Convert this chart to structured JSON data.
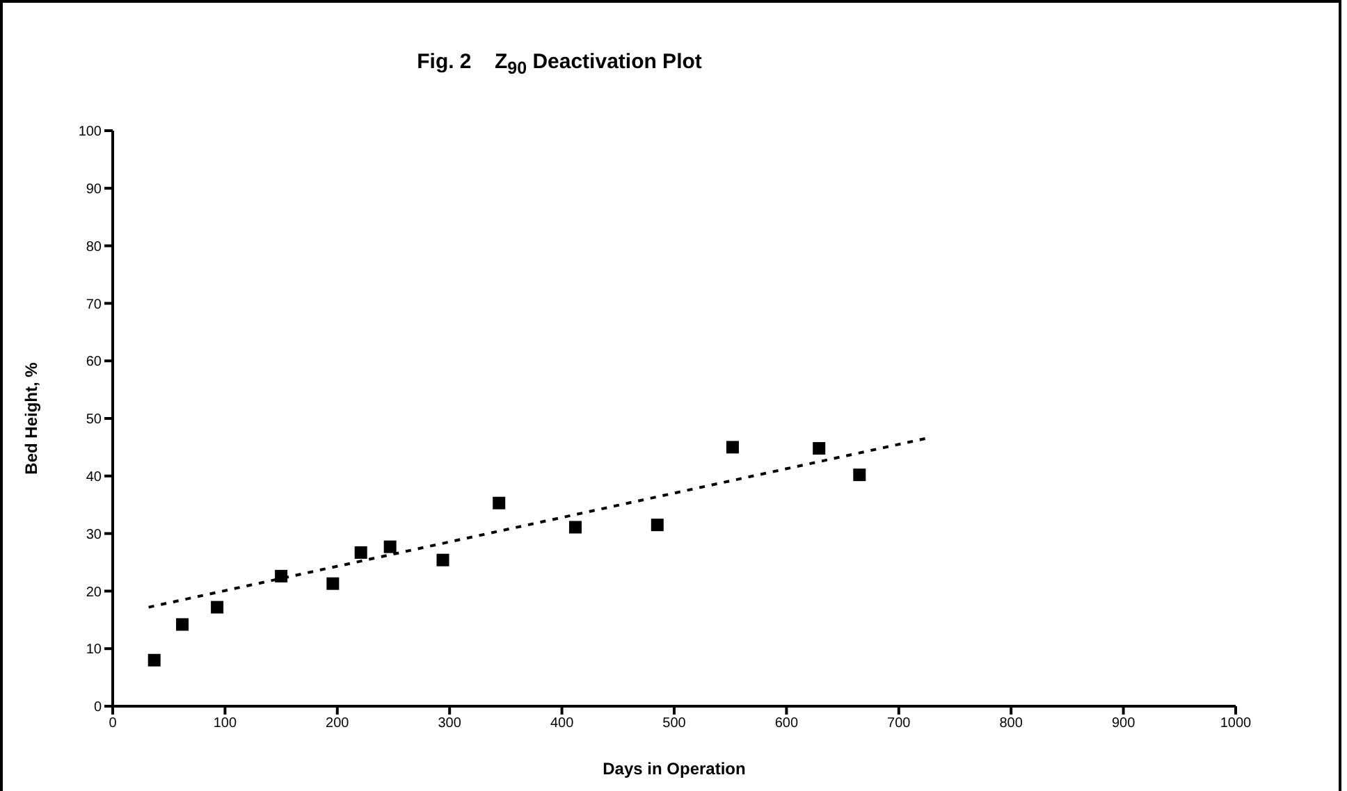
{
  "chart_data": {
    "type": "scatter",
    "title": "Fig. 2    Z$_{90}$ Deactivation Plot",
    "xlabel": "Days in Operation",
    "ylabel": "Bed Height, %",
    "xlim": [
      0,
      1000
    ],
    "xticks": [
      0,
      100,
      200,
      300,
      400,
      500,
      600,
      700,
      800,
      900,
      1000
    ],
    "ylim": [
      0,
      100
    ],
    "yticks": [
      0,
      10,
      20,
      30,
      40,
      50,
      60,
      70,
      80,
      90,
      100
    ],
    "marker": "square",
    "series": [
      {
        "color": "#000000",
        "x": [
          37,
          62,
          93,
          150,
          196,
          221,
          247,
          294,
          344,
          412,
          485,
          552,
          629,
          665
        ],
        "values": [
          8.0,
          14.2,
          17.2,
          22.6,
          21.3,
          26.7,
          27.7,
          25.4,
          35.3,
          31.1,
          31.5,
          45.0,
          44.8,
          40.2
        ]
      },
      {
        "type": "line",
        "color": "#000000",
        "line_style": "dashed",
        "marker": "none",
        "x": [
          32,
          726
        ],
        "values": [
          17.2,
          46.6
        ]
      }
    ]
  }
}
